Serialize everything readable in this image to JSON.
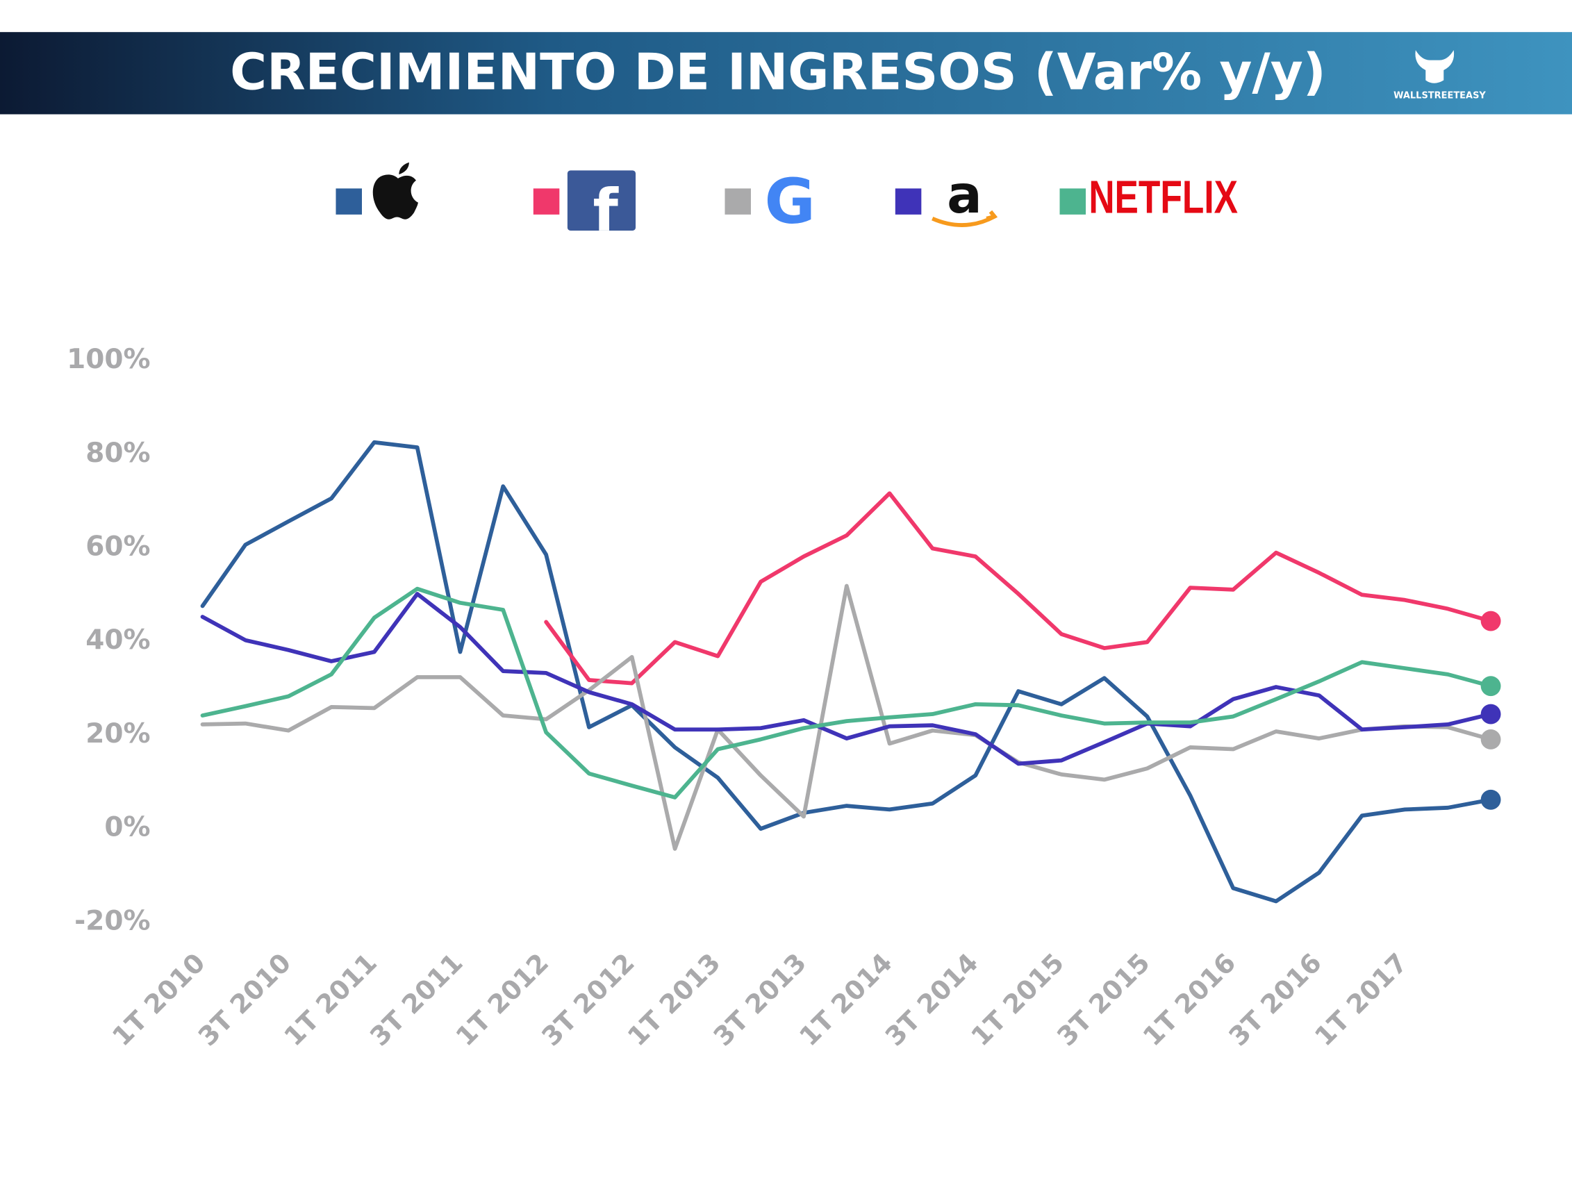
{
  "chart_data": {
    "type": "line",
    "title": "CRECIMIENTO DE INGRESOS (Var% y/y)",
    "brand": "WALLSTREETEASY",
    "categories": [
      "1T 2010",
      null,
      "3T 2010",
      null,
      "1T 2011",
      null,
      "3T 2011",
      null,
      "1T 2012",
      null,
      "3T 2012",
      null,
      "1T 2013",
      null,
      "3T 2013",
      null,
      "1T 2014",
      null,
      "3T 2014",
      null,
      "1T 2015",
      null,
      "3T 2015",
      null,
      "1T 2016",
      null,
      "3T 2016",
      null,
      "1T 2017",
      null,
      null
    ],
    "ylim": [
      -20,
      100
    ],
    "yticks": [
      {
        "value": -20,
        "label": "-20%"
      },
      {
        "value": 0,
        "label": "0%"
      },
      {
        "value": 20,
        "label": "20%"
      },
      {
        "value": 40,
        "label": "40%"
      },
      {
        "value": 60,
        "label": "60%"
      },
      {
        "value": 80,
        "label": "80%"
      },
      {
        "value": 100,
        "label": "100%"
      }
    ],
    "grid": false,
    "end_markers": true,
    "series": [
      {
        "color": "#2e5f9a",
        "values": [
          47.6,
          60.7,
          65.7,
          70.6,
          82.6,
          81.5,
          37.8,
          73.2,
          58.6,
          21.7,
          26.4,
          17.4,
          10.9,
          0,
          3.4,
          4.9,
          4.1,
          5.4,
          11.4,
          29.4,
          26.6,
          32.2,
          24.0,
          7.1,
          -12.7,
          -15.5,
          -9.4,
          2.8,
          4.1,
          4.5,
          6.2
        ]
      },
      {
        "name": "f",
        "color": "#f0386b",
        "values": [
          null,
          null,
          null,
          null,
          null,
          null,
          null,
          null,
          44.2,
          31.8,
          31.1,
          39.9,
          36.9,
          52.8,
          58.2,
          62.7,
          71.7,
          59.9,
          58.2,
          50.2,
          41.6,
          38.6,
          39.9,
          51.5,
          51.1,
          59.0,
          54.7,
          50.0,
          48.9,
          47.0,
          44.4
        ]
      },
      {
        "name": "G",
        "color": "#aaaaab",
        "values": [
          22.3,
          22.5,
          21.0,
          26.0,
          25.8,
          32.4,
          32.4,
          24.2,
          23.4,
          29.6,
          36.7,
          -4.3,
          21.2,
          11.4,
          2.6,
          51.9,
          18.2,
          21.0,
          20.0,
          14.2,
          11.6,
          10.5,
          12.9,
          17.4,
          17.0,
          20.8,
          19.3,
          21.2,
          21.9,
          21.7,
          19.1
        ]
      },
      {
        "name": "a",
        "color": "#3f33b8",
        "values": [
          45.3,
          40.3,
          38.2,
          35.8,
          37.8,
          50.2,
          43.1,
          33.7,
          33.3,
          29.2,
          26.6,
          21.2,
          21.2,
          21.5,
          23.2,
          19.3,
          21.9,
          22.1,
          20.2,
          13.9,
          14.6,
          18.5,
          22.5,
          21.9,
          27.7,
          30.3,
          28.5,
          21.2,
          21.7,
          22.3,
          24.5
        ]
      },
      {
        "name": "NETFLIX",
        "color": "#4db48f",
        "values": [
          24.2,
          26.2,
          28.3,
          33.0,
          45.1,
          51.3,
          48.3,
          46.8,
          20.6,
          11.8,
          9.2,
          6.7,
          17.0,
          19.1,
          21.5,
          23.0,
          23.8,
          24.5,
          26.6,
          26.4,
          24.2,
          22.5,
          22.7,
          22.7,
          24.0,
          27.7,
          31.5,
          35.6,
          34.3,
          33.0,
          30.5
        ]
      }
    ]
  }
}
